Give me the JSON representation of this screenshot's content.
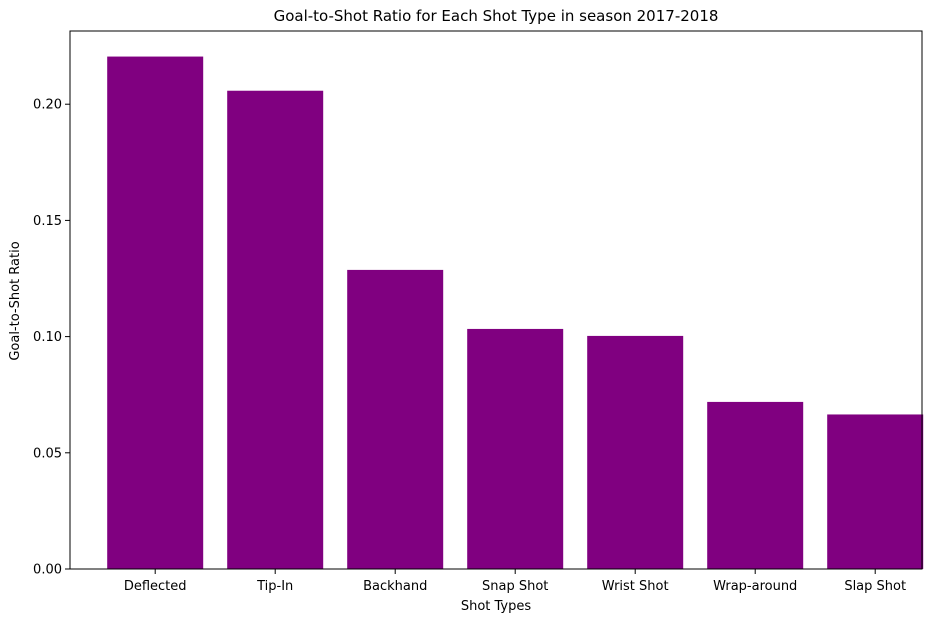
{
  "chart_data": {
    "type": "bar",
    "title": "Goal-to-Shot Ratio for Each Shot Type in season 2017-2018",
    "xlabel": "Shot Types",
    "ylabel": "Goal-to-Shot Ratio",
    "categories": [
      "Deflected",
      "Tip-In",
      "Backhand",
      "Snap Shot",
      "Wrist Shot",
      "Wrap-around",
      "Slap Shot"
    ],
    "values": [
      0.2205,
      0.2058,
      0.1287,
      0.1033,
      0.1003,
      0.0719,
      0.0665
    ],
    "ylim": [
      0,
      0.2315
    ],
    "yticks": [
      0.0,
      0.05,
      0.1,
      0.15,
      0.2
    ],
    "ytick_labels": [
      "0.00",
      "0.05",
      "0.10",
      "0.15",
      "0.20"
    ],
    "bar_color": "#800080",
    "grid": false,
    "legend": "none"
  }
}
